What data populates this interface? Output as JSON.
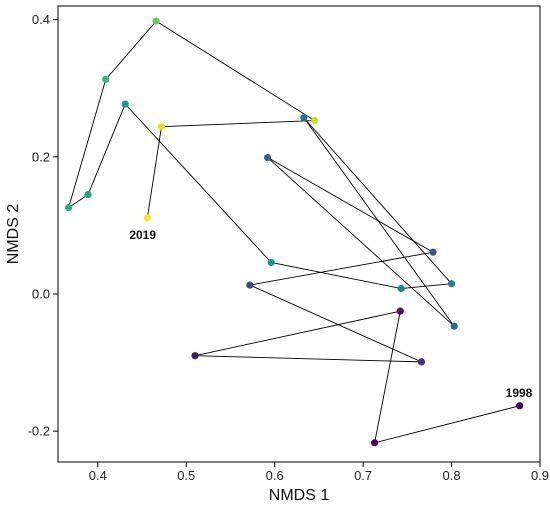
{
  "chart_data": {
    "type": "scatter",
    "title": "",
    "xlabel": "NMDS 1",
    "ylabel": "NMDS 2",
    "xlim": [
      0.355,
      0.9
    ],
    "ylim": [
      -0.245,
      0.42
    ],
    "x_ticks": [
      0.4,
      0.5,
      0.6,
      0.7,
      0.8,
      0.9
    ],
    "x_tick_labels": [
      "0.4",
      "0.5",
      "0.6",
      "0.7",
      "0.8",
      "0.9"
    ],
    "y_ticks": [
      -0.2,
      0.0,
      0.2,
      0.4
    ],
    "y_tick_labels": [
      "-0.2",
      "0.0",
      "0.2",
      "0.4"
    ],
    "grid": false,
    "connected_path": true,
    "color_scale": "viridis",
    "points": [
      {
        "x": 0.877,
        "y": -0.163,
        "color": "#440154"
      },
      {
        "x": 0.713,
        "y": -0.217,
        "color": "#46085c"
      },
      {
        "x": 0.742,
        "y": -0.025,
        "color": "#471164"
      },
      {
        "x": 0.51,
        "y": -0.09,
        "color": "#48186a"
      },
      {
        "x": 0.766,
        "y": -0.099,
        "color": "#472f7d"
      },
      {
        "x": 0.572,
        "y": 0.013,
        "color": "#3e4a89"
      },
      {
        "x": 0.779,
        "y": 0.061,
        "color": "#3b528b"
      },
      {
        "x": 0.592,
        "y": 0.199,
        "color": "#355f8d"
      },
      {
        "x": 0.803,
        "y": -0.047,
        "color": "#31688e"
      },
      {
        "x": 0.633,
        "y": 0.257,
        "color": "#2c728e"
      },
      {
        "x": 0.8,
        "y": 0.015,
        "color": "#297b8e"
      },
      {
        "x": 0.743,
        "y": 0.008,
        "color": "#25858e"
      },
      {
        "x": 0.596,
        "y": 0.046,
        "color": "#21918c"
      },
      {
        "x": 0.431,
        "y": 0.277,
        "color": "#1f9a8a"
      },
      {
        "x": 0.389,
        "y": 0.145,
        "color": "#21a685"
      },
      {
        "x": 0.367,
        "y": 0.126,
        "color": "#2ab07f"
      },
      {
        "x": 0.409,
        "y": 0.313,
        "color": "#35b779"
      },
      {
        "x": 0.466,
        "y": 0.398,
        "color": "#6ccd5a"
      },
      {
        "x": 0.645,
        "y": 0.253,
        "color": "#c2df23"
      },
      {
        "x": 0.472,
        "y": 0.244,
        "color": "#dde318"
      },
      {
        "x": 0.456,
        "y": 0.111,
        "color": "#fde725"
      }
    ],
    "annotations": [
      {
        "text": "1998",
        "x": 0.877,
        "y": -0.163
      },
      {
        "text": "2019",
        "x": 0.456,
        "y": 0.111
      }
    ]
  }
}
